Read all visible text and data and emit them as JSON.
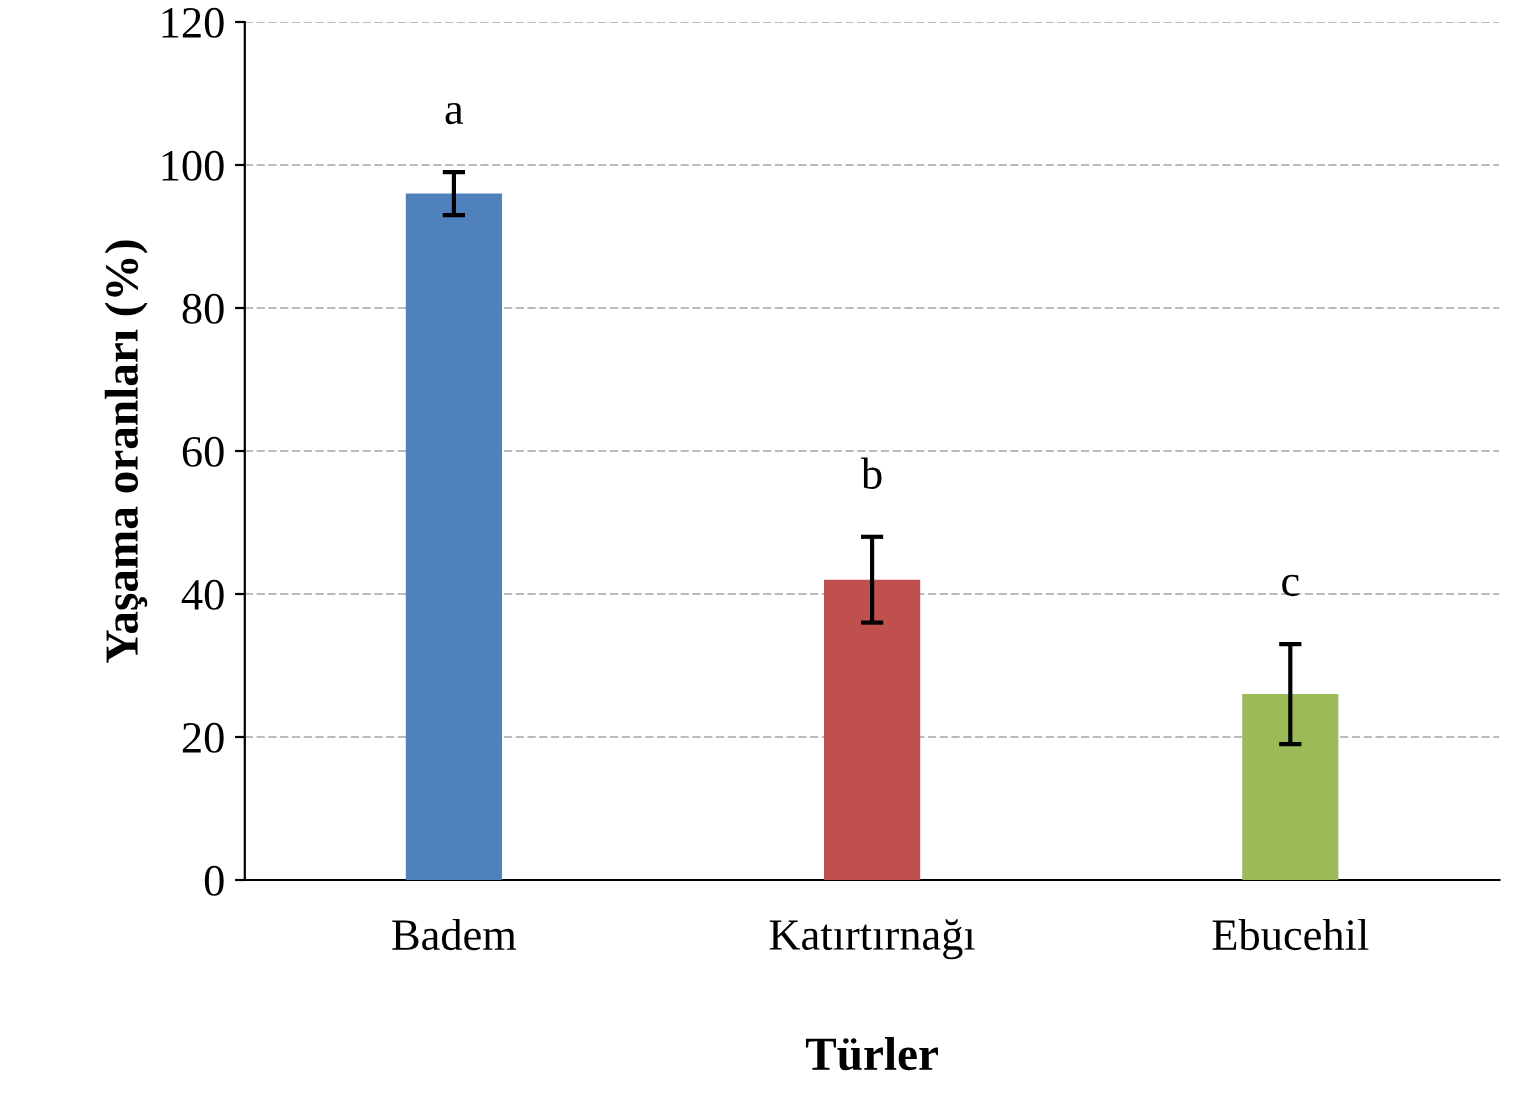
{
  "chart_data": {
    "type": "bar",
    "xlabel": "Türler",
    "ylabel": "Yaşama oranları (%)",
    "categories": [
      "Badem",
      "Katırtırnağı",
      "Ebucehil"
    ],
    "values": [
      96,
      42,
      26
    ],
    "colors": [
      "#4f81bd",
      "#c0504d",
      "#9bbb59"
    ],
    "errors": [
      3,
      6,
      7
    ],
    "ylim": [
      0,
      120
    ],
    "yticks": [
      0,
      20,
      40,
      60,
      80,
      100,
      120
    ],
    "grid": "y",
    "annotations": [
      "a",
      "b",
      "c"
    ]
  }
}
